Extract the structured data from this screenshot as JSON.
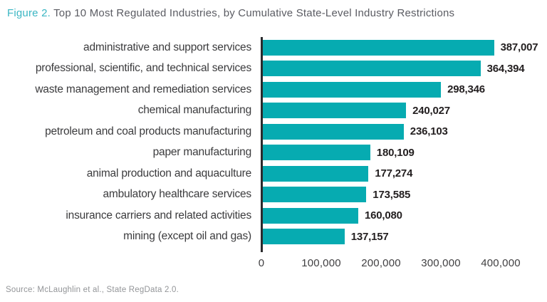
{
  "title": {
    "prefix": "Figure 2.",
    "text": " Top 10 Most Regulated Industries, by Cumulative State-Level Industry Restrictions"
  },
  "source": "Source: McLaughlin et al., State RegData 2.0.",
  "colors": {
    "bar": "#06abb1",
    "title_prefix": "#3bb6c3",
    "title_text": "#5b5c63",
    "label": "#3b3b3d",
    "value": "#231f20",
    "axis": "#2a2a2c",
    "tick": "#414042",
    "source": "#939598"
  },
  "chart_data": {
    "type": "bar",
    "orientation": "horizontal",
    "title": "Top 10 Most Regulated Industries, by Cumulative State-Level Industry Restrictions",
    "categories": [
      "administrative and support services",
      "professional, scientific, and technical services",
      "waste management and remediation services",
      "chemical manufacturing",
      "petroleum and coal products manufacturing",
      "paper manufacturing",
      "animal production and aquaculture",
      "ambulatory healthcare services",
      "insurance carriers and related activities",
      "mining (except oil and gas)"
    ],
    "values": [
      387007,
      364394,
      298346,
      240027,
      236103,
      180109,
      177274,
      173585,
      160080,
      137157
    ],
    "value_labels": [
      "387,007",
      "364,394",
      "298,346",
      "240,027",
      "236,103",
      "180,109",
      "177,274",
      "173,585",
      "160,080",
      "137,157"
    ],
    "xlim": [
      0,
      400000
    ],
    "x_ticks": [
      "0",
      "100,000",
      "200,000",
      "300,000",
      "400,000"
    ],
    "x_tick_values": [
      0,
      100000,
      200000,
      300000,
      400000
    ],
    "grid": false,
    "legend": false
  }
}
